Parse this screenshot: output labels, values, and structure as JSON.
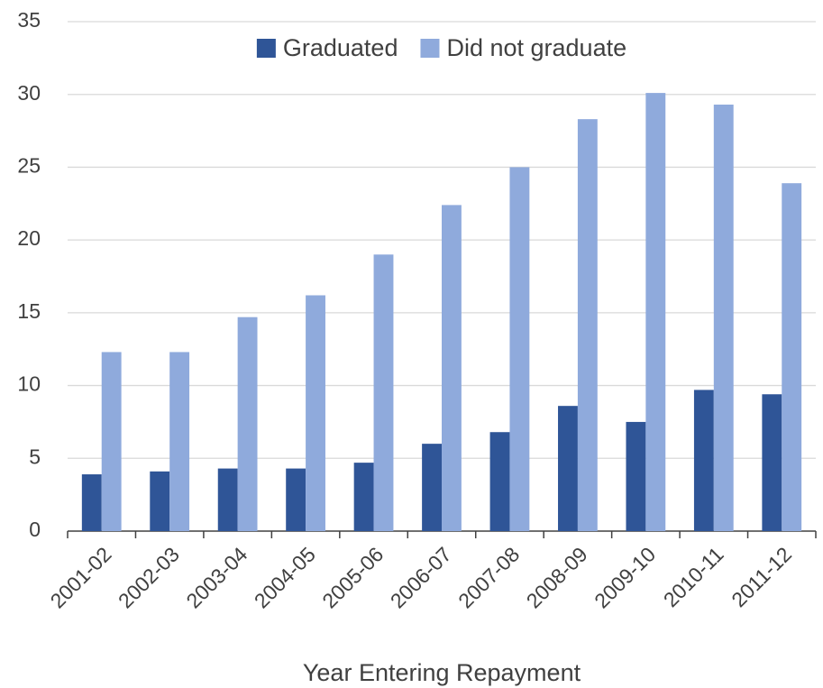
{
  "chart_data": {
    "type": "bar",
    "x_label": "Year Entering Repayment",
    "categories": [
      "2001-02",
      "2002-03",
      "2003-04",
      "2004-05",
      "2005-06",
      "2006-07",
      "2007-08",
      "2008-09",
      "2009-10",
      "2010-11",
      "2011-12"
    ],
    "series": [
      {
        "name": "Graduated",
        "color": "#2f5597",
        "values": [
          3.9,
          4.1,
          4.3,
          4.3,
          4.7,
          6.0,
          6.8,
          8.6,
          7.5,
          9.7,
          9.4
        ]
      },
      {
        "name": "Did not graduate",
        "color": "#8faadc",
        "values": [
          12.3,
          12.3,
          14.7,
          16.2,
          19.0,
          22.4,
          25.0,
          28.3,
          30.1,
          29.3,
          23.9
        ]
      }
    ],
    "ylim": [
      0,
      35
    ],
    "yticks": [
      0,
      5,
      10,
      15,
      20,
      25,
      30,
      35
    ],
    "grid": true,
    "legend": "top"
  }
}
